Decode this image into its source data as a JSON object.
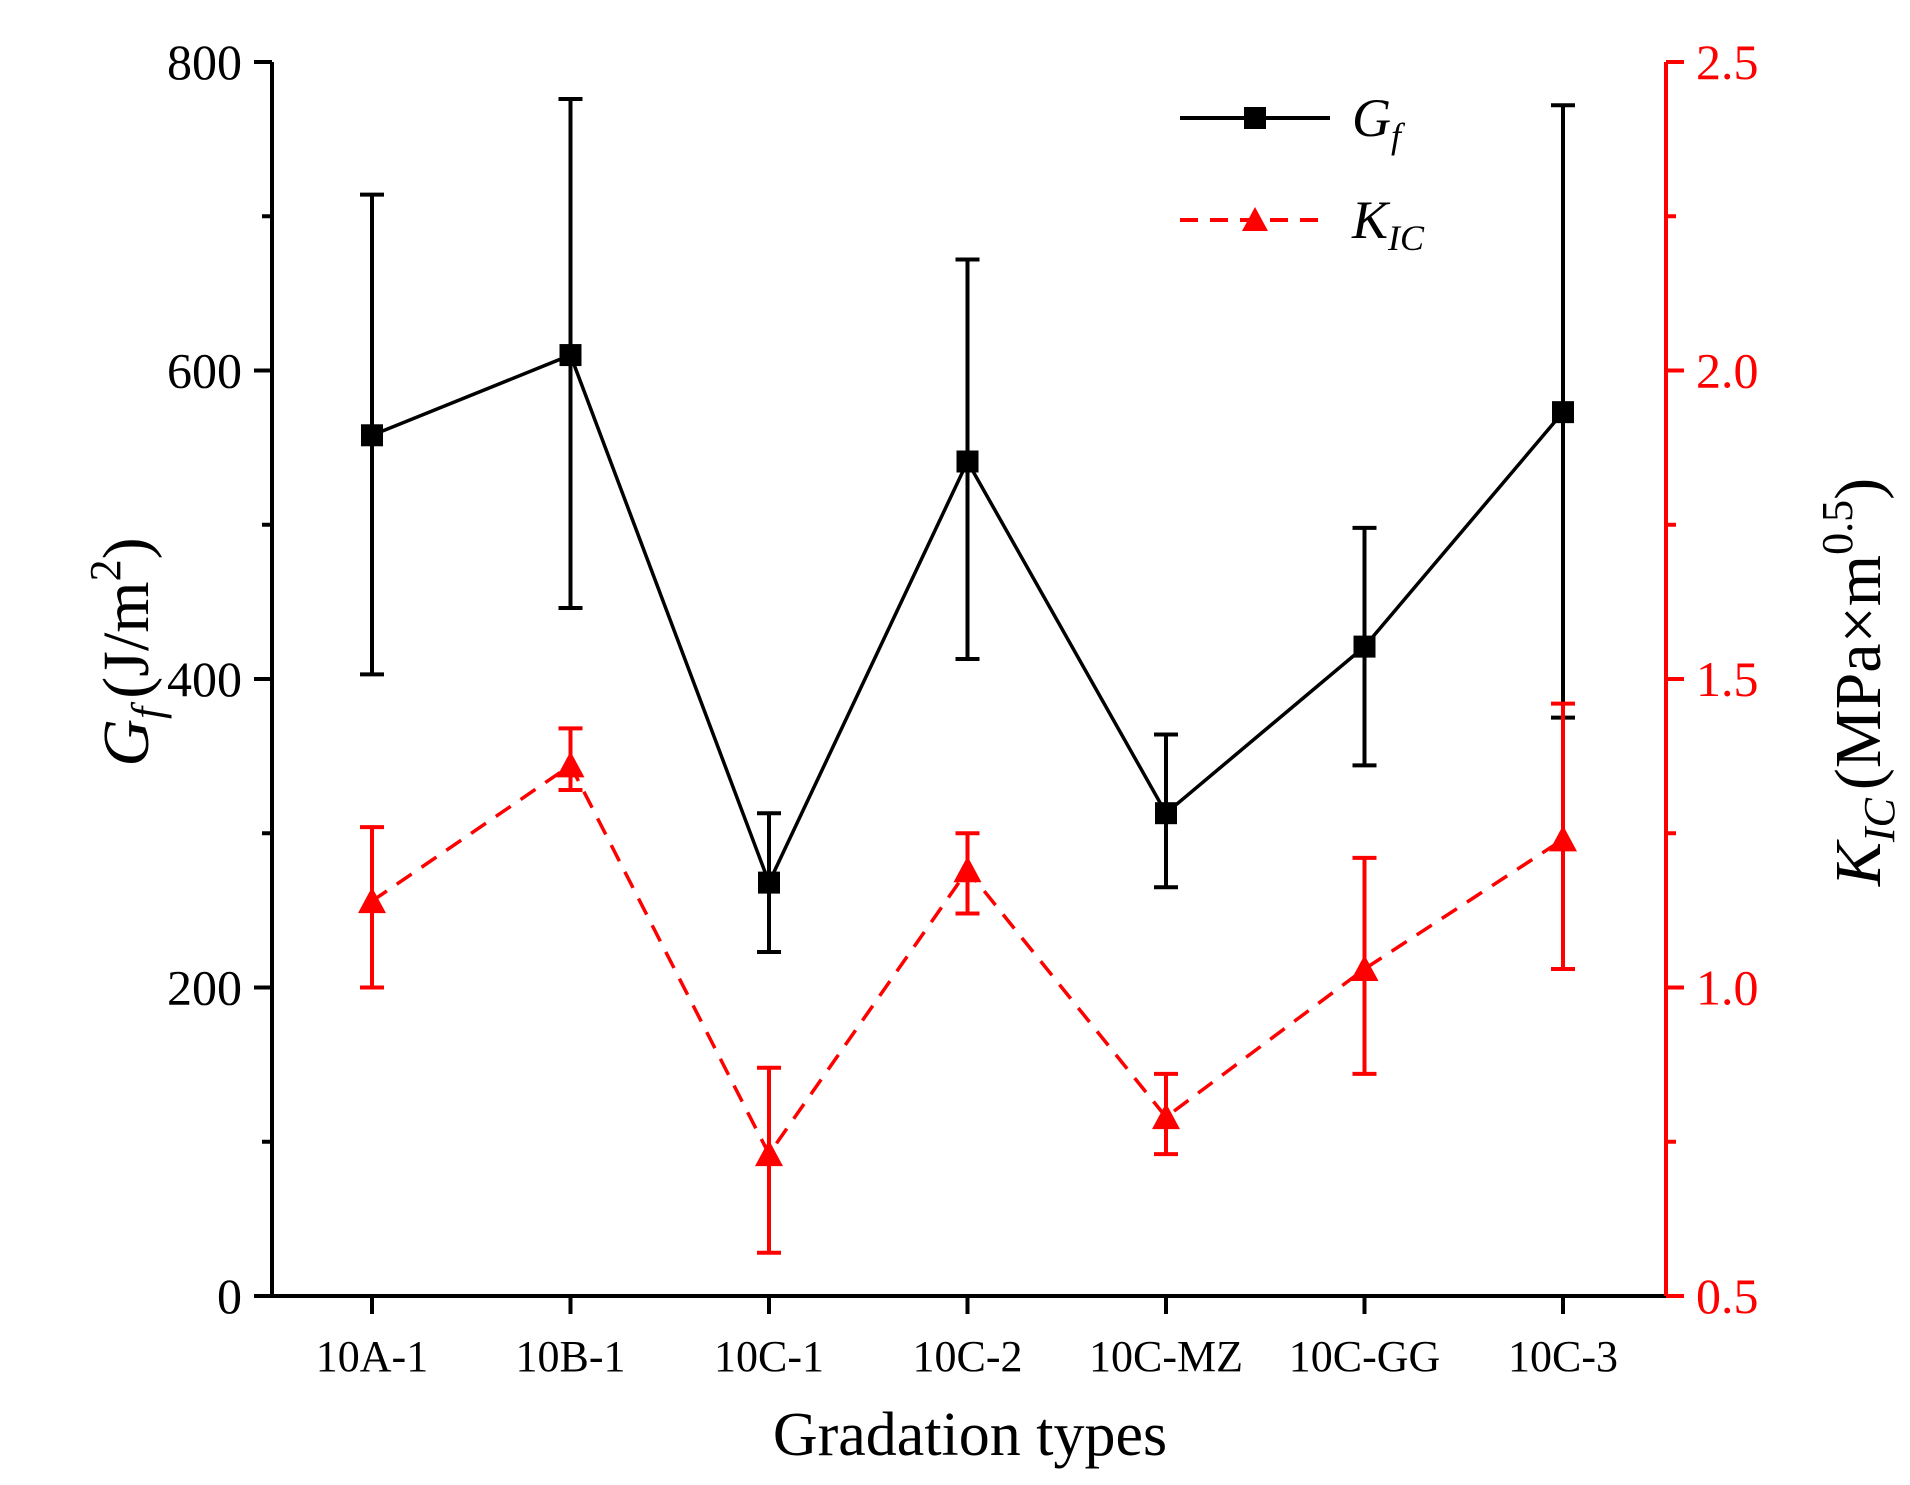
{
  "chart_data": {
    "type": "line",
    "title": "",
    "xlabel": "Gradation types",
    "categories": [
      "10A-1",
      "10B-1",
      "10C-1",
      "10C-2",
      "10C-MZ",
      "10C-GG",
      "10C-3"
    ],
    "ylabel_left": {
      "symbol": "G",
      "subscript": "f",
      "unit": "(J/m",
      "superscript": "2",
      "close": ")"
    },
    "ylabel_right": {
      "symbol": "K",
      "subscript": "IC",
      "unit": "(MPa×m",
      "superscript": "0.5",
      "close": ")"
    },
    "ylim_left": [
      0,
      800
    ],
    "ylim_right": [
      0.5,
      2.5
    ],
    "yticks_left": [
      "0",
      "200",
      "400",
      "600",
      "800"
    ],
    "yticks_right": [
      "0.5",
      "1.0",
      "1.5",
      "2.0",
      "2.5"
    ],
    "legend_position": "top-right",
    "series": [
      {
        "name": "G",
        "name_sub": "f",
        "axis": "left",
        "color": "#000000",
        "line_style": "solid",
        "marker": "square",
        "values": [
          558,
          610,
          268,
          541,
          313,
          421,
          573
        ],
        "err_low": [
          403,
          446,
          223,
          413,
          265,
          344,
          375
        ],
        "err_high": [
          714,
          776,
          313,
          672,
          364,
          498,
          772
        ]
      },
      {
        "name": "K",
        "name_sub": "IC",
        "axis": "right",
        "color": "#ff0000",
        "line_style": "dashed",
        "marker": "triangle",
        "values": [
          1.14,
          1.36,
          0.73,
          1.19,
          0.79,
          1.03,
          1.24
        ],
        "err_low": [
          1.0,
          1.32,
          0.57,
          1.12,
          0.73,
          0.86,
          1.03
        ],
        "err_high": [
          1.26,
          1.42,
          0.87,
          1.25,
          0.86,
          1.21,
          1.46
        ]
      }
    ]
  }
}
